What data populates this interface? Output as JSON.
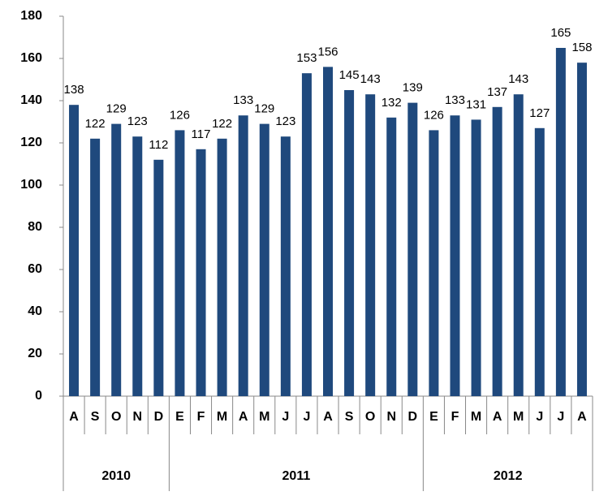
{
  "chart_data": {
    "type": "bar",
    "categories": [
      "A",
      "S",
      "O",
      "N",
      "D",
      "E",
      "F",
      "M",
      "A",
      "M",
      "J",
      "J",
      "A",
      "S",
      "O",
      "N",
      "D",
      "E",
      "F",
      "M",
      "A",
      "M",
      "J",
      "J",
      "A"
    ],
    "groups": [
      "2010",
      null,
      null,
      null,
      null,
      "2011",
      null,
      null,
      null,
      null,
      null,
      null,
      null,
      null,
      null,
      null,
      null,
      "2012",
      null,
      null,
      null,
      null,
      null,
      null,
      null
    ],
    "values": [
      138,
      122,
      129,
      123,
      112,
      126,
      117,
      122,
      133,
      129,
      123,
      153,
      156,
      145,
      143,
      132,
      139,
      126,
      133,
      131,
      137,
      143,
      127,
      165,
      158
    ],
    "color": "#1f497d",
    "ylim": [
      0,
      180
    ],
    "yticks": [
      0,
      20,
      40,
      60,
      80,
      100,
      120,
      140,
      160,
      180
    ],
    "grid": false
  }
}
